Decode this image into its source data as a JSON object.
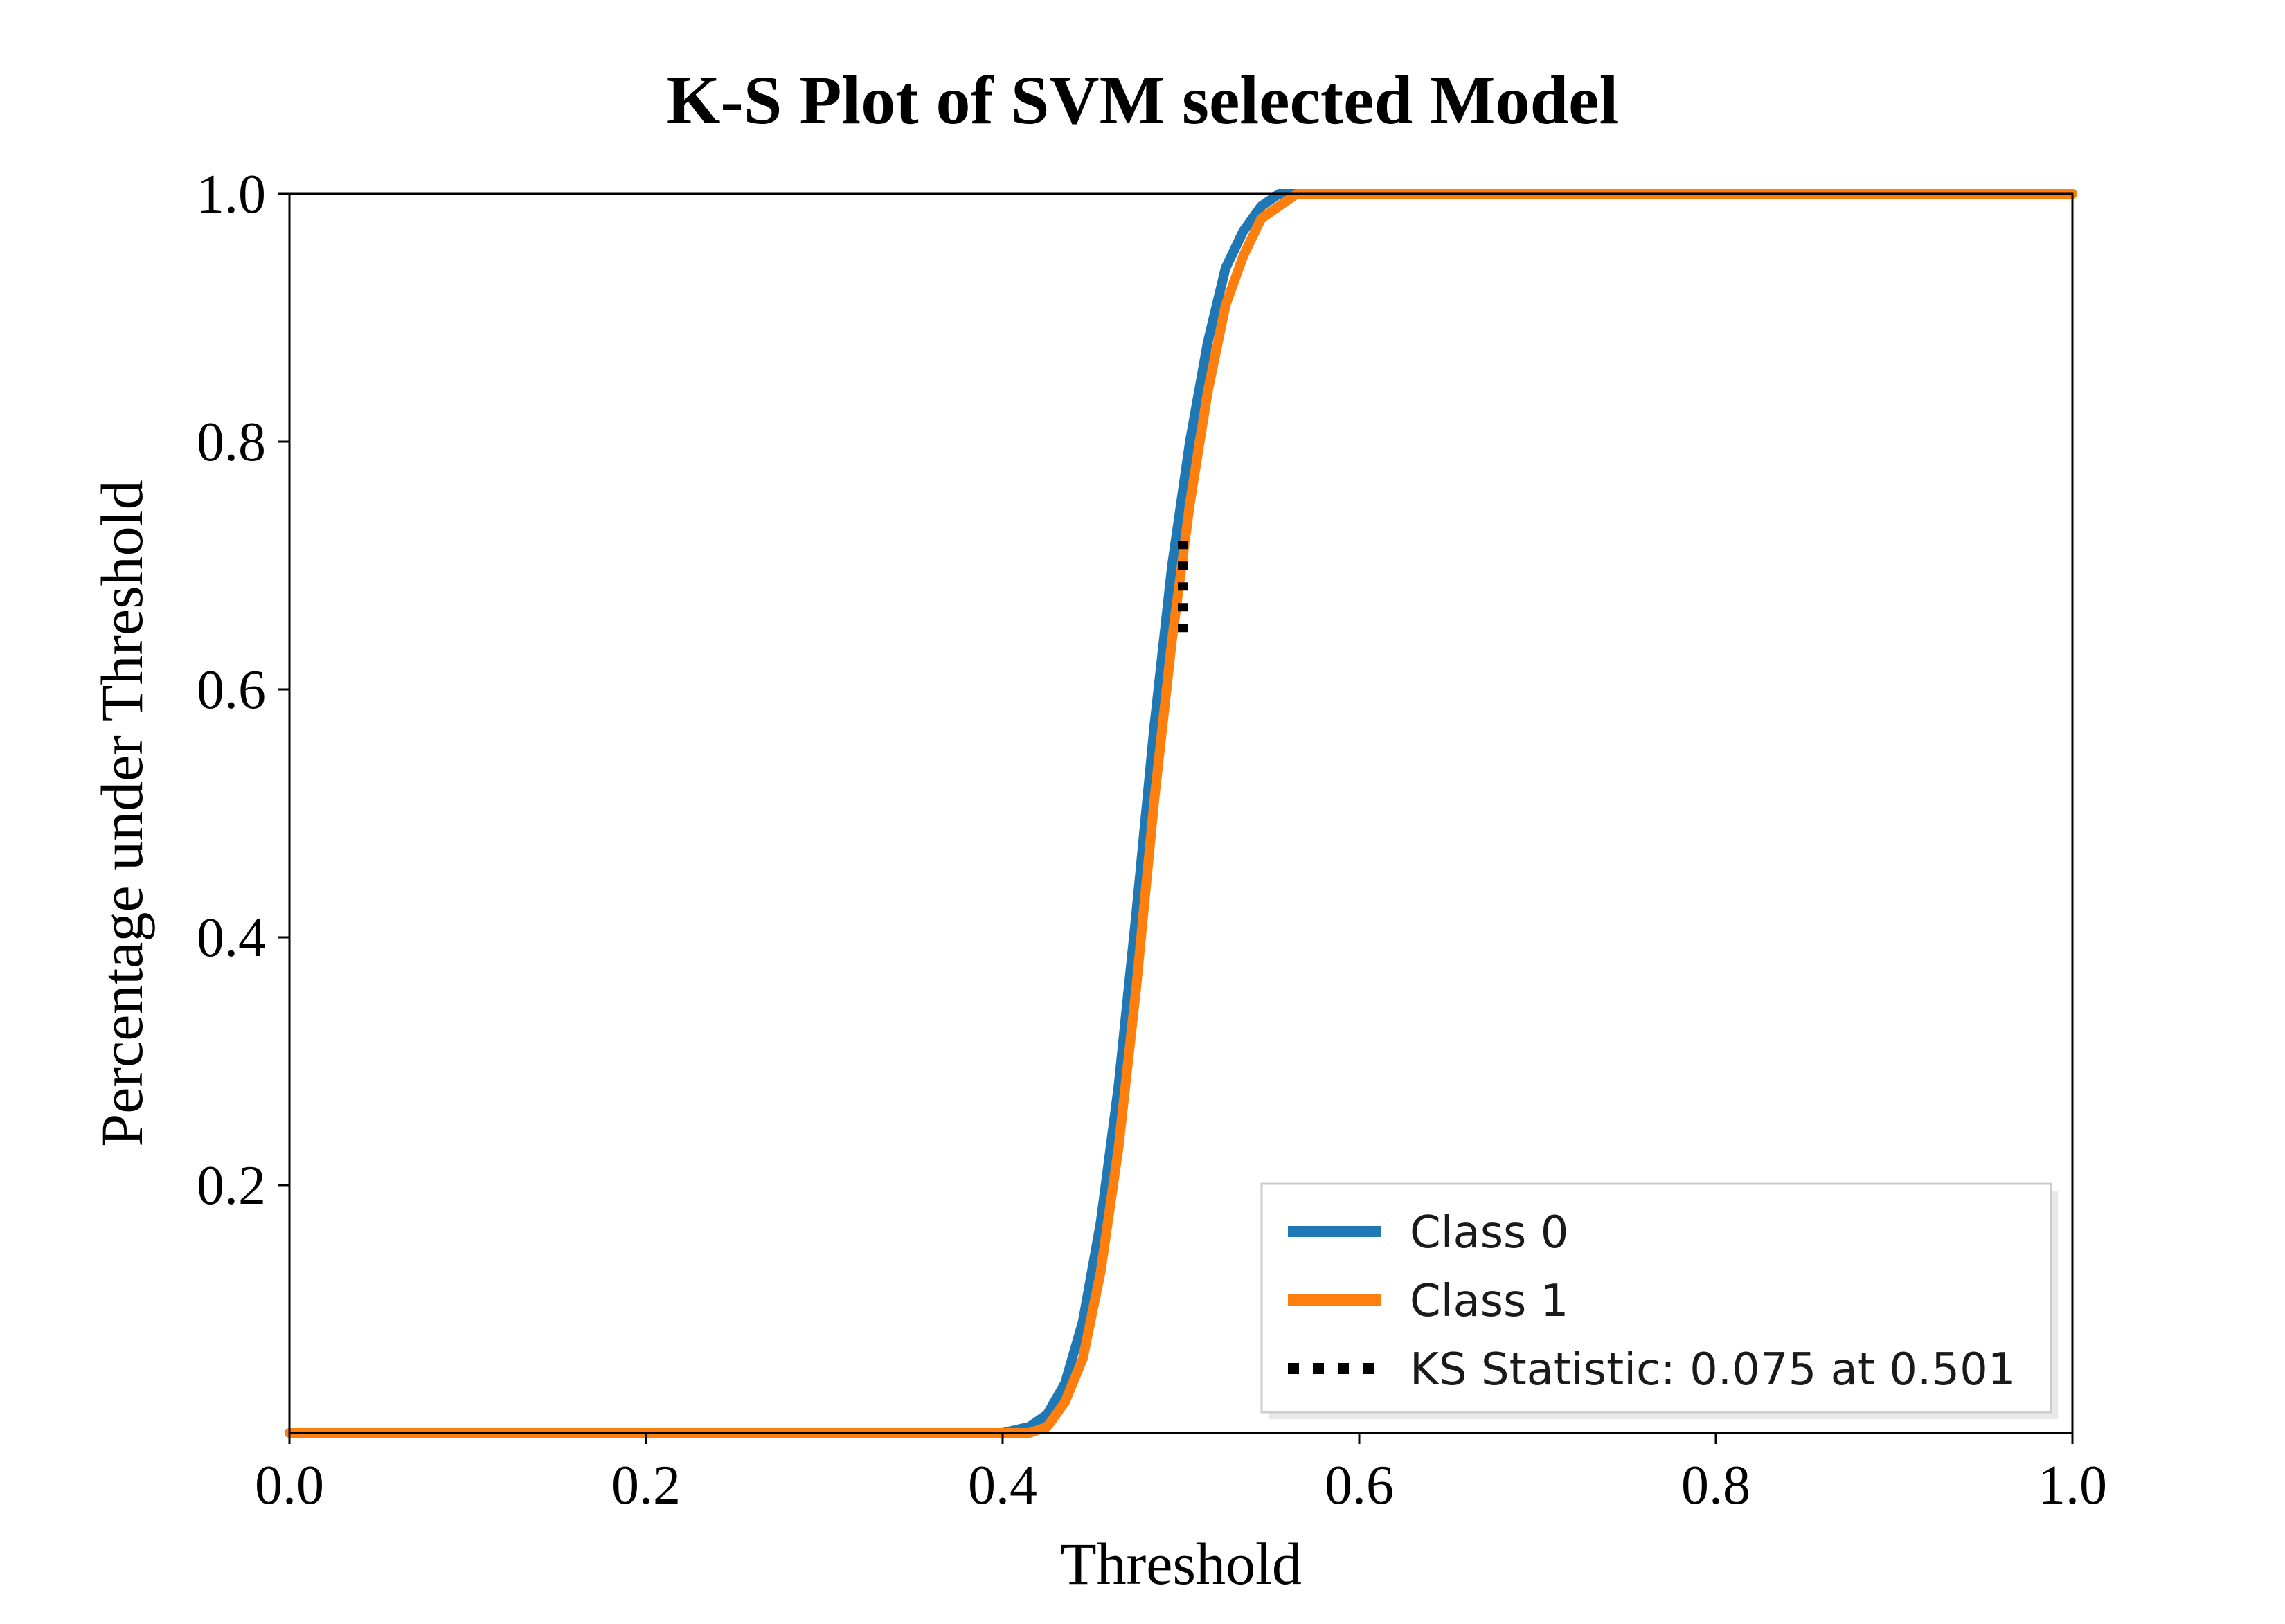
{
  "chart_data": {
    "type": "line",
    "title": "K-S Plot of SVM selected Model",
    "xlabel": "Threshold",
    "ylabel": "Percentage under Threshold",
    "xlim": [
      0.0,
      1.0
    ],
    "ylim": [
      0.0,
      1.0
    ],
    "xticks": [
      "0.0",
      "0.2",
      "0.4",
      "0.6",
      "0.8",
      "1.0"
    ],
    "yticks": [
      "0.2",
      "0.4",
      "0.6",
      "0.8",
      "1.0"
    ],
    "grid": false,
    "legend_position": "bottom-right",
    "colors": {
      "class0": "#1f77b4",
      "class1": "#ff7f0e",
      "ks": "#000000"
    },
    "series": [
      {
        "name": "Class 0",
        "x": [
          0.0,
          0.4,
          0.415,
          0.425,
          0.435,
          0.445,
          0.455,
          0.465,
          0.475,
          0.485,
          0.495,
          0.505,
          0.515,
          0.525,
          0.535,
          0.545,
          0.555,
          0.565,
          0.58,
          1.0
        ],
        "values": [
          0.0,
          0.0,
          0.005,
          0.015,
          0.04,
          0.09,
          0.17,
          0.28,
          0.42,
          0.57,
          0.7,
          0.8,
          0.88,
          0.94,
          0.97,
          0.99,
          1.0,
          1.0,
          1.0,
          1.0
        ]
      },
      {
        "name": "Class 1",
        "x": [
          0.0,
          0.4,
          0.415,
          0.425,
          0.435,
          0.445,
          0.455,
          0.465,
          0.475,
          0.485,
          0.495,
          0.505,
          0.515,
          0.525,
          0.535,
          0.545,
          0.555,
          0.565,
          0.58,
          0.6,
          1.0
        ],
        "values": [
          0.0,
          0.0,
          0.0,
          0.005,
          0.025,
          0.06,
          0.13,
          0.23,
          0.36,
          0.51,
          0.64,
          0.75,
          0.84,
          0.91,
          0.95,
          0.98,
          0.99,
          1.0,
          1.0,
          1.0,
          1.0
        ]
      }
    ],
    "ks_line": {
      "name": "KS Statistic: 0.075 at 0.501",
      "x": 0.501,
      "y_start": 0.645,
      "y_end": 0.72
    }
  }
}
